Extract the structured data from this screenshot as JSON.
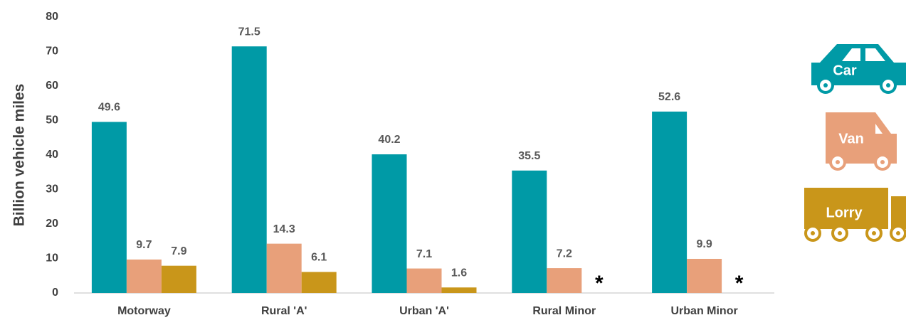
{
  "chart_data": {
    "type": "bar",
    "y_label": "Billion vehicle miles",
    "categories": [
      "Motorway",
      "Rural 'A'",
      "Urban 'A'",
      "Rural Minor",
      "Urban Minor"
    ],
    "series": [
      {
        "name": "Car",
        "color": "#009aa6",
        "values": [
          49.6,
          71.5,
          40.2,
          35.5,
          52.6
        ]
      },
      {
        "name": "Van",
        "color": "#e8a07a",
        "values": [
          9.7,
          14.3,
          7.1,
          7.2,
          9.9
        ]
      },
      {
        "name": "Lorry",
        "color": "#c9961a",
        "values": [
          7.9,
          6.1,
          1.6,
          null,
          null
        ],
        "value_labels": [
          "7.9",
          "6.1",
          "1.6",
          "*",
          "*"
        ]
      }
    ],
    "ylim": [
      0,
      80
    ],
    "yticks": [
      0,
      10,
      20,
      30,
      40,
      50,
      60,
      70,
      80
    ],
    "grid": false
  }
}
